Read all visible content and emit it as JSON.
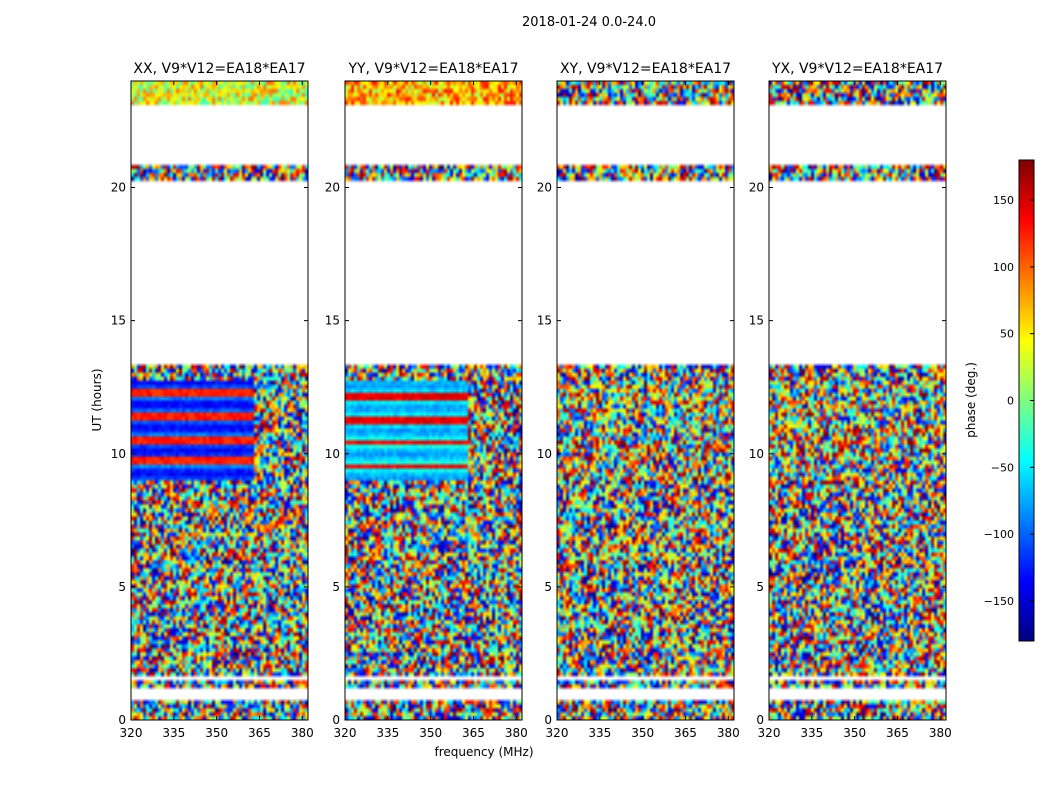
{
  "figure": {
    "suptitle": "2018-01-24 0.0-24.0",
    "xlabel": "frequency (MHz)",
    "ylabel": "UT (hours)",
    "colorbar_label": "phase (deg.)",
    "colorbar_ticks": [
      150,
      100,
      50,
      0,
      -50,
      -100,
      -150
    ],
    "colorbar_tick_labels": [
      "150",
      "100",
      "50",
      "0",
      "−50",
      "−100",
      "−150"
    ],
    "colorbar_range": [
      -180,
      180
    ],
    "colors": {
      "axes": "#000000",
      "background": "#ffffff",
      "colormap": [
        "#00007f",
        "#0000ff",
        "#007fff",
        "#00ffff",
        "#7fff7f",
        "#ffff00",
        "#ff7f00",
        "#ff0000",
        "#7f0000"
      ]
    }
  },
  "chart_data": [
    {
      "type": "heatmap",
      "title": "XX, V9*V12=EA18*EA17",
      "x_ticks": [
        320,
        335,
        350,
        365,
        380
      ],
      "x_tick_labels": [
        "320",
        "335",
        "350",
        "365",
        "380"
      ],
      "y_ticks": [
        0,
        5,
        10,
        15,
        20
      ],
      "y_tick_labels": [
        "0",
        "5",
        "10",
        "15",
        "20"
      ],
      "xlim": [
        320,
        382
      ],
      "ylim": [
        0,
        24
      ],
      "blank_ut_ranges": [
        [
          0.7,
          1.2
        ],
        [
          1.45,
          1.6
        ],
        [
          13.4,
          20.2
        ],
        [
          20.8,
          23.1
        ]
      ],
      "structure": "ordered phase (blue/red bands) 9.0-12.7 h; noisy phase elsewhere"
    },
    {
      "type": "heatmap",
      "title": "YY, V9*V12=EA18*EA17",
      "x_ticks": [
        320,
        335,
        350,
        365,
        380
      ],
      "x_tick_labels": [
        "320",
        "335",
        "350",
        "365",
        "380"
      ],
      "y_ticks": [
        0,
        5,
        10,
        15,
        20
      ],
      "y_tick_labels": [
        "0",
        "5",
        "10",
        "15",
        "20"
      ],
      "xlim": [
        320,
        382
      ],
      "ylim": [
        0,
        24
      ],
      "blank_ut_ranges": [
        [
          0.7,
          1.2
        ],
        [
          1.45,
          1.6
        ],
        [
          13.4,
          20.2
        ],
        [
          20.8,
          23.1
        ]
      ],
      "structure": "ordered phase (cyan/blue bands) 9.0-12.7 h; noisy phase elsewhere"
    },
    {
      "type": "heatmap",
      "title": "XY, V9*V12=EA18*EA17",
      "x_ticks": [
        320,
        335,
        350,
        365,
        380
      ],
      "x_tick_labels": [
        "320",
        "335",
        "350",
        "365",
        "380"
      ],
      "y_ticks": [
        0,
        5,
        10,
        15,
        20
      ],
      "y_tick_labels": [
        "0",
        "5",
        "10",
        "15",
        "20"
      ],
      "xlim": [
        320,
        382
      ],
      "ylim": [
        0,
        24
      ],
      "blank_ut_ranges": [
        [
          0.7,
          1.2
        ],
        [
          1.45,
          1.6
        ],
        [
          13.4,
          20.2
        ],
        [
          20.8,
          23.1
        ]
      ],
      "structure": "mostly random phase"
    },
    {
      "type": "heatmap",
      "title": "YX, V9*V12=EA18*EA17",
      "x_ticks": [
        320,
        335,
        350,
        365,
        380
      ],
      "x_tick_labels": [
        "320",
        "335",
        "350",
        "365",
        "380"
      ],
      "y_ticks": [
        0,
        5,
        10,
        15,
        20
      ],
      "y_tick_labels": [
        "0",
        "5",
        "10",
        "15",
        "20"
      ],
      "xlim": [
        320,
        382
      ],
      "ylim": [
        0,
        24
      ],
      "blank_ut_ranges": [
        [
          0.7,
          1.2
        ],
        [
          1.45,
          1.6
        ],
        [
          13.4,
          20.2
        ],
        [
          20.8,
          23.1
        ]
      ],
      "structure": "mostly random phase"
    }
  ]
}
